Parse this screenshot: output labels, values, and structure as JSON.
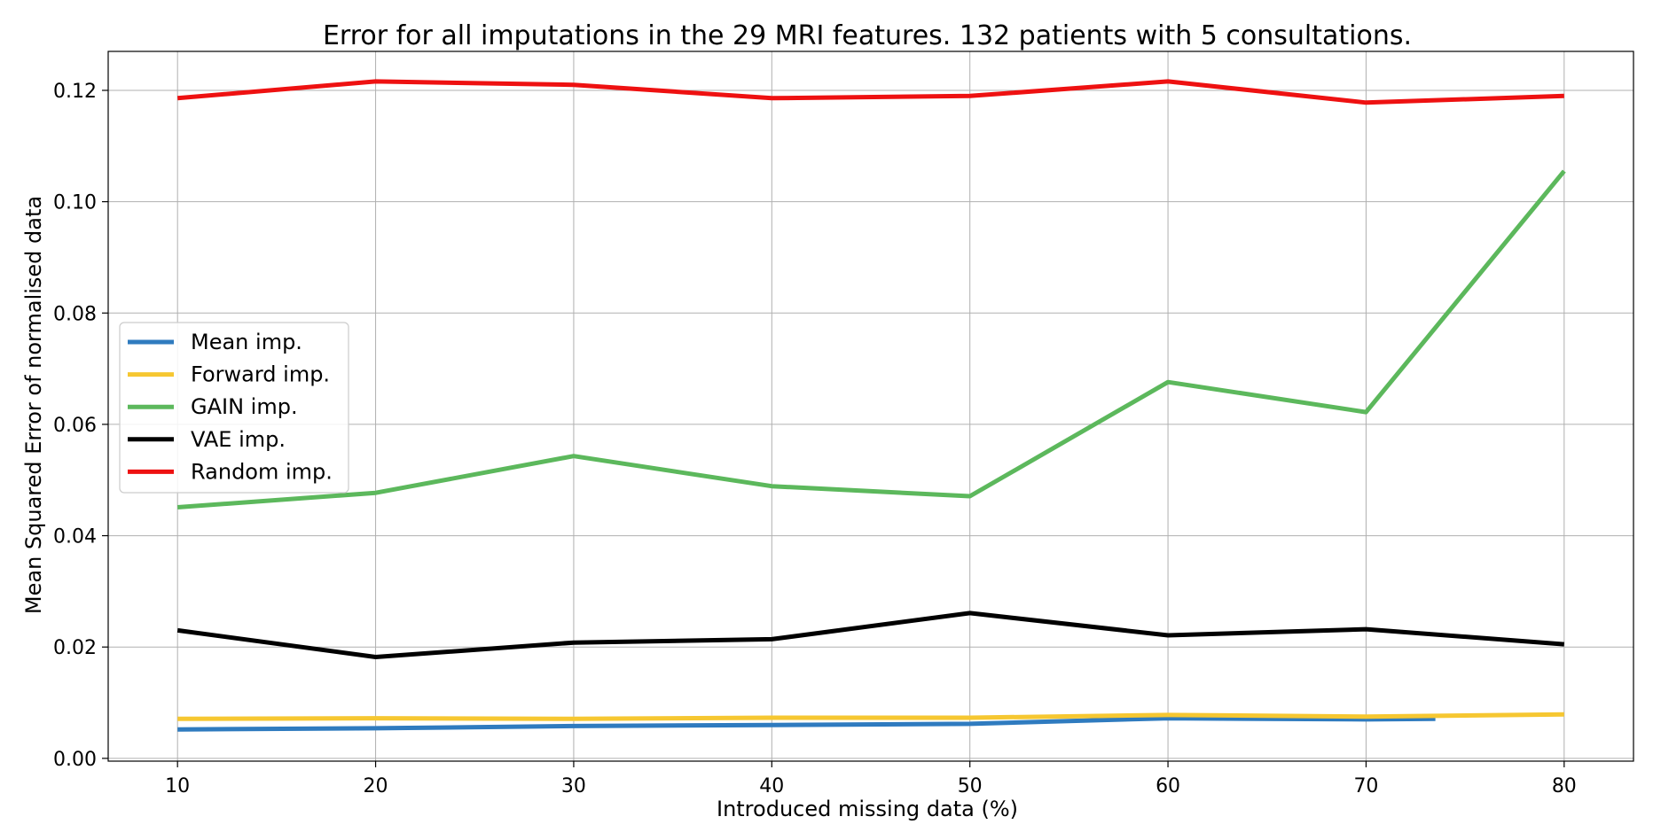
{
  "chart_data": {
    "type": "line",
    "title": "Error for all imputations in the 29 MRI features. 132 patients with 5 consultations.",
    "xlabel": "Introduced missing data (%)",
    "ylabel": "Mean Squared Error of normalised data",
    "x": [
      10,
      20,
      30,
      40,
      50,
      60,
      70,
      80
    ],
    "xlim": [
      6.5,
      83.5
    ],
    "ylim": [
      -0.0005,
      0.127
    ],
    "xticks": [
      10,
      20,
      30,
      40,
      50,
      60,
      70,
      80
    ],
    "yticks": [
      0.0,
      0.02,
      0.04,
      0.06,
      0.08,
      0.1,
      0.12
    ],
    "ytick_labels": [
      "0.00",
      "0.02",
      "0.04",
      "0.06",
      "0.08",
      "0.10",
      "0.12"
    ],
    "grid": true,
    "legend_position": "center-left",
    "series": [
      {
        "name": "Mean imp.",
        "color": "#2f7bbf",
        "x": [
          10,
          20,
          30,
          40,
          50,
          60,
          70,
          73.5
        ],
        "values": [
          0.0052,
          0.0054,
          0.0058,
          0.006,
          0.0062,
          0.0072,
          0.007,
          0.0071
        ]
      },
      {
        "name": "Forward imp.",
        "color": "#f6c731",
        "x": [
          10,
          20,
          30,
          40,
          50,
          60,
          70,
          80
        ],
        "values": [
          0.0071,
          0.0072,
          0.0071,
          0.0073,
          0.0073,
          0.0078,
          0.0075,
          0.0079
        ]
      },
      {
        "name": "GAIN imp.",
        "color": "#5cb85c",
        "x": [
          10,
          20,
          30,
          40,
          50,
          60,
          70,
          80
        ],
        "values": [
          0.0451,
          0.0477,
          0.0543,
          0.0489,
          0.0471,
          0.0676,
          0.0622,
          0.1055
        ]
      },
      {
        "name": "VAE imp.",
        "color": "#000000",
        "x": [
          10,
          20,
          30,
          40,
          50,
          60,
          70,
          80
        ],
        "values": [
          0.023,
          0.0182,
          0.0208,
          0.0214,
          0.0261,
          0.0221,
          0.0232,
          0.0205
        ]
      },
      {
        "name": "Random imp.",
        "color": "#ee1111",
        "x": [
          10,
          20,
          30,
          40,
          50,
          60,
          70,
          80
        ],
        "values": [
          0.1186,
          0.1216,
          0.121,
          0.1186,
          0.119,
          0.1216,
          0.1178,
          0.119
        ]
      }
    ]
  }
}
